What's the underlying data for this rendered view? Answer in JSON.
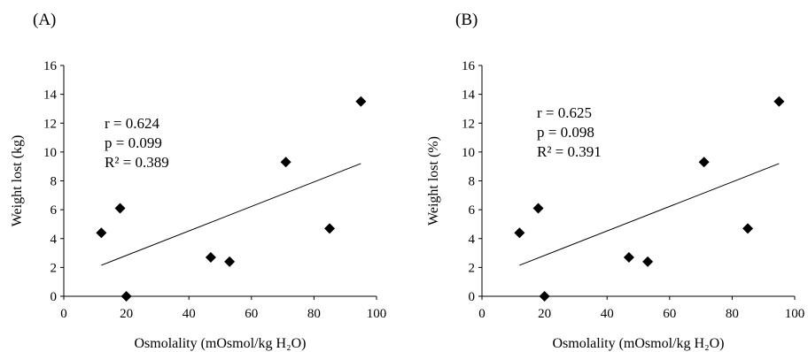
{
  "chart_data": [
    {
      "type": "scatter",
      "panel_label": "(A)",
      "xlabel": "Osmolality (mOsmol/kg H₂O)",
      "ylabel": "Weight lost (kg)",
      "xlim": [
        0,
        100
      ],
      "ylim": [
        0,
        16
      ],
      "xticks": [
        "0",
        "20",
        "40",
        "60",
        "80",
        "100"
      ],
      "yticks": [
        "0",
        "2",
        "4",
        "6",
        "8",
        "10",
        "12",
        "14",
        "16"
      ],
      "grid": false,
      "marker": "diamond",
      "marker_color": "#000000",
      "points": [
        {
          "x": 12,
          "y": 4.4
        },
        {
          "x": 18,
          "y": 6.1
        },
        {
          "x": 20,
          "y": 0.0
        },
        {
          "x": 47,
          "y": 2.7
        },
        {
          "x": 53,
          "y": 2.4
        },
        {
          "x": 71,
          "y": 9.3
        },
        {
          "x": 85,
          "y": 4.7
        },
        {
          "x": 95,
          "y": 13.5
        }
      ],
      "trendline": {
        "x": [
          12,
          95
        ],
        "y": [
          2.15,
          9.2
        ]
      },
      "annotations": [
        "r = 0.624",
        "p = 0.099",
        "R² = 0.389"
      ]
    },
    {
      "type": "scatter",
      "panel_label": "(B)",
      "xlabel": "Osmolality (mOsmol/kg H₂O)",
      "ylabel": "Weight lost (%)",
      "xlim": [
        0,
        100
      ],
      "ylim": [
        0,
        16
      ],
      "xticks": [
        "0",
        "20",
        "40",
        "60",
        "80",
        "100"
      ],
      "yticks": [
        "0",
        "2",
        "4",
        "6",
        "8",
        "10",
        "12",
        "14",
        "16"
      ],
      "grid": false,
      "marker": "diamond",
      "marker_color": "#000000",
      "points": [
        {
          "x": 12,
          "y": 4.4
        },
        {
          "x": 18,
          "y": 6.1
        },
        {
          "x": 20,
          "y": 0.0
        },
        {
          "x": 47,
          "y": 2.7
        },
        {
          "x": 53,
          "y": 2.4
        },
        {
          "x": 71,
          "y": 9.3
        },
        {
          "x": 85,
          "y": 4.7
        },
        {
          "x": 95,
          "y": 13.5
        }
      ],
      "trendline": {
        "x": [
          12,
          95
        ],
        "y": [
          2.15,
          9.2
        ]
      },
      "annotations": [
        "r = 0.625",
        "p = 0.098",
        "R² = 0.391"
      ]
    }
  ]
}
